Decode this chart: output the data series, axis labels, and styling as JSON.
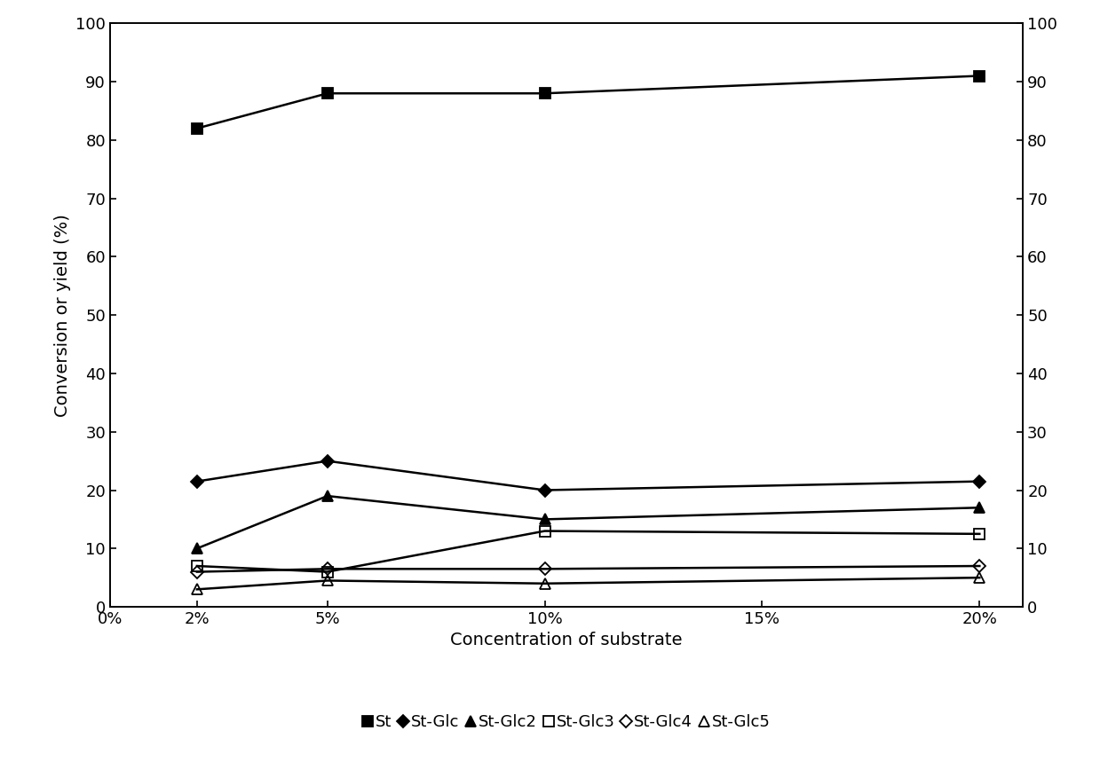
{
  "x_values": [
    2,
    5,
    10,
    20
  ],
  "x_ticks": [
    0,
    2,
    5,
    10,
    15,
    20
  ],
  "x_labels": [
    "0%",
    "2%",
    "5%",
    "10%",
    "15%",
    "20%"
  ],
  "ylim": [
    0,
    100
  ],
  "ylabel": "Conversion or yield (%)",
  "xlabel": "Concentration of substrate",
  "series_order": [
    "St",
    "St-Glc",
    "St-Glc2",
    "St-Glc3",
    "St-Glc4",
    "St-Glc5"
  ],
  "series": {
    "St": [
      82,
      88,
      88,
      91
    ],
    "St-Glc": [
      21.5,
      25,
      20,
      21.5
    ],
    "St-Glc2": [
      10,
      19,
      15,
      17
    ],
    "St-Glc3": [
      7,
      6,
      13,
      12.5
    ],
    "St-Glc4": [
      6,
      6.5,
      6.5,
      7
    ],
    "St-Glc5": [
      3,
      4.5,
      4,
      5
    ]
  },
  "line_configs": {
    "St": {
      "marker": "s",
      "fillstyle": "full",
      "markersize": 8,
      "lw": 1.8
    },
    "St-Glc": {
      "marker": "D",
      "fillstyle": "full",
      "markersize": 7,
      "lw": 1.8
    },
    "St-Glc2": {
      "marker": "^",
      "fillstyle": "full",
      "markersize": 9,
      "lw": 1.8
    },
    "St-Glc3": {
      "marker": "s",
      "fillstyle": "none",
      "markersize": 8,
      "lw": 1.8
    },
    "St-Glc4": {
      "marker": "D",
      "fillstyle": "none",
      "markersize": 7,
      "lw": 1.8
    },
    "St-Glc5": {
      "marker": "^",
      "fillstyle": "none",
      "markersize": 9,
      "lw": 1.8
    }
  },
  "legend_labels": [
    "St",
    "St-Glc",
    "St-Glc2",
    "St-Glc3",
    "St-Glc4",
    "St-Glc5"
  ],
  "tick_fontsize": 13,
  "label_fontsize": 14,
  "legend_fontsize": 13
}
